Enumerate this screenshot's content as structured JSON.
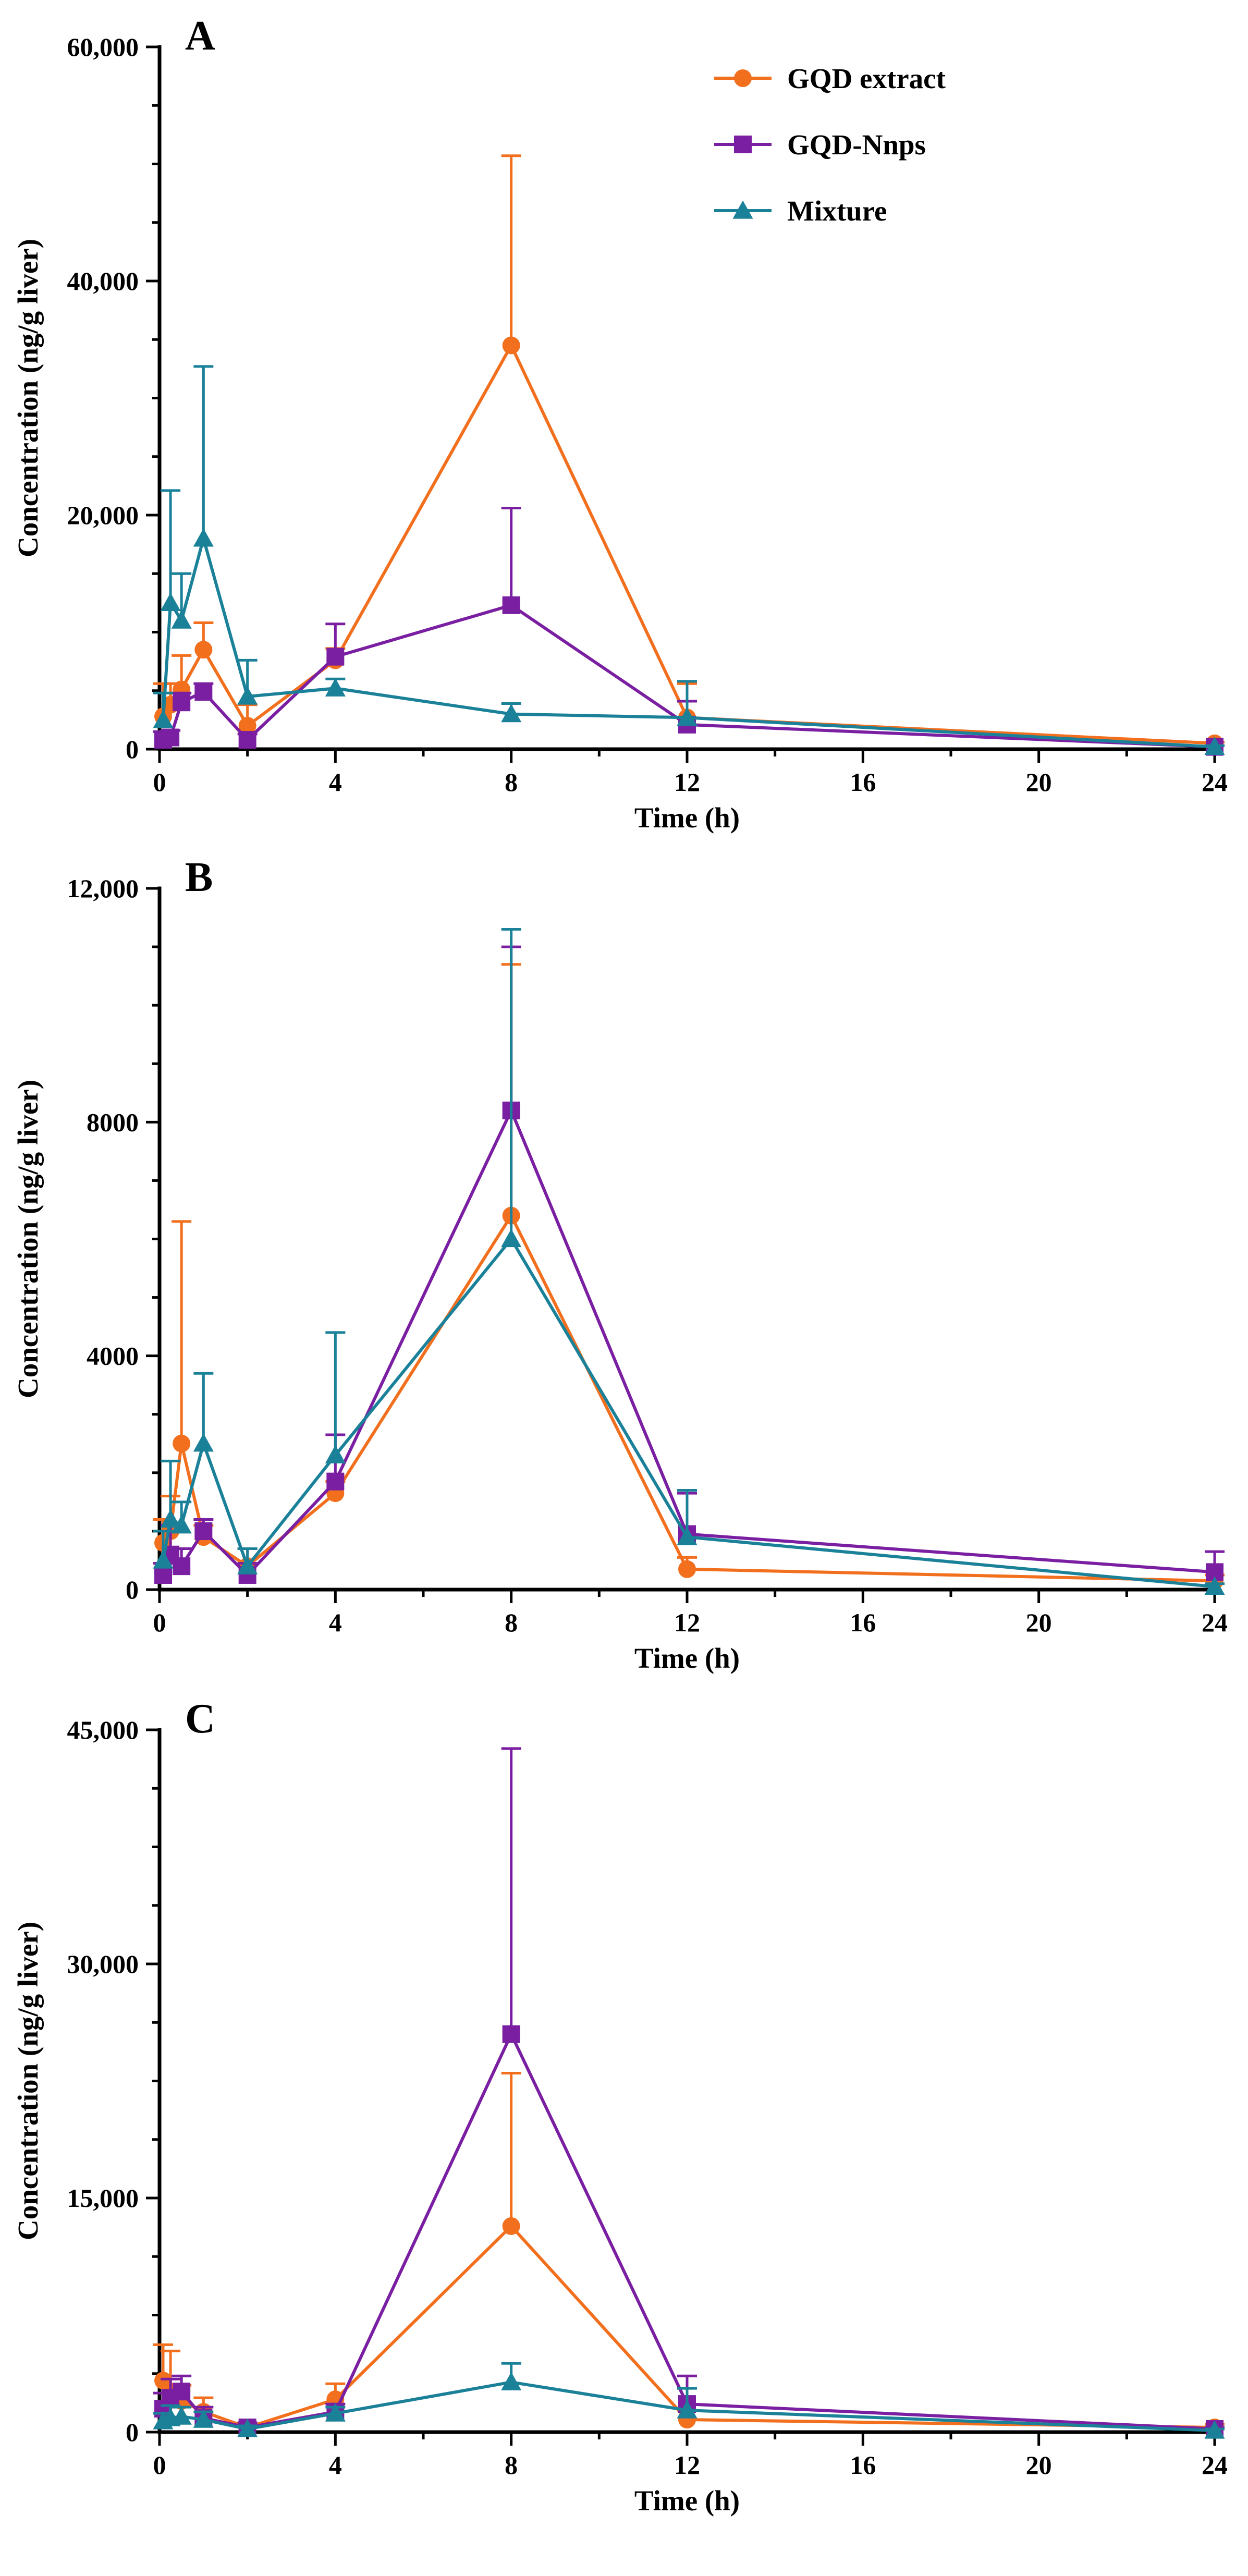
{
  "chart_data": [
    {
      "type": "line",
      "panel_label": "A",
      "xlabel": "Time (h)",
      "ylabel": "Concentration (ng/g liver)",
      "xlim": [
        0,
        24
      ],
      "ylim": [
        0,
        60000
      ],
      "x_ticks": [
        0,
        4,
        8,
        12,
        16,
        20,
        24
      ],
      "x_tick_labels": [
        "0",
        "4",
        "8",
        "12",
        "16",
        "20",
        "24"
      ],
      "y_ticks": [
        0,
        20000,
        40000,
        60000
      ],
      "y_tick_labels": [
        "0",
        "20,000",
        "40,000",
        "60,000"
      ],
      "legend": {
        "position": "top-right"
      },
      "series": [
        {
          "name": "GQD extract",
          "color": "#F26F1E",
          "marker": "circle",
          "x": [
            0.083,
            0.25,
            0.5,
            1,
            2,
            4,
            8,
            12,
            24
          ],
          "y": [
            2800,
            3800,
            5100,
            8500,
            2000,
            7600,
            34500,
            2700,
            500
          ],
          "error": [
            2800,
            1800,
            2900,
            2300,
            1800,
            1000,
            16200,
            2900,
            100
          ]
        },
        {
          "name": "GQD-Nnps",
          "color": "#7B1FA2",
          "marker": "square",
          "x": [
            0.083,
            0.25,
            0.5,
            1,
            2,
            4,
            8,
            12,
            24
          ],
          "y": [
            800,
            1000,
            4000,
            4900,
            800,
            7900,
            12300,
            2100,
            200
          ],
          "error": [
            700,
            600,
            800,
            700,
            500,
            2800,
            8300,
            2000,
            100
          ]
        },
        {
          "name": "Mixture",
          "color": "#1A8199",
          "marker": "triangle",
          "x": [
            0.083,
            0.25,
            0.5,
            1,
            2,
            4,
            8,
            12,
            24
          ],
          "y": [
            2500,
            12500,
            11000,
            18000,
            4500,
            5200,
            3000,
            2700,
            200
          ],
          "error": [
            2300,
            9600,
            4000,
            14700,
            3100,
            800,
            900,
            3100,
            100
          ]
        }
      ]
    },
    {
      "type": "line",
      "panel_label": "B",
      "xlabel": "Time (h)",
      "ylabel": "Concentration (ng/g liver)",
      "xlim": [
        0,
        24
      ],
      "ylim": [
        0,
        12000
      ],
      "x_ticks": [
        0,
        4,
        8,
        12,
        16,
        20,
        24
      ],
      "x_tick_labels": [
        "0",
        "4",
        "8",
        "12",
        "16",
        "20",
        "24"
      ],
      "y_ticks": [
        0,
        4000,
        8000,
        12000
      ],
      "y_tick_labels": [
        "0",
        "4000",
        "8000",
        "12,000"
      ],
      "series": [
        {
          "name": "GQD extract",
          "color": "#F26F1E",
          "marker": "circle",
          "x": [
            0.083,
            0.25,
            0.5,
            1,
            2,
            4,
            8,
            12,
            24
          ],
          "y": [
            800,
            1000,
            2500,
            900,
            400,
            1650,
            6400,
            350,
            150
          ],
          "error": [
            400,
            600,
            3800,
            200,
            300,
            200,
            4300,
            200,
            100
          ]
        },
        {
          "name": "GQD-Nnps",
          "color": "#7B1FA2",
          "marker": "square",
          "x": [
            0.083,
            0.25,
            0.5,
            1,
            2,
            4,
            8,
            12,
            24
          ],
          "y": [
            250,
            600,
            400,
            1000,
            250,
            1850,
            8200,
            950,
            300
          ],
          "error": [
            200,
            500,
            300,
            200,
            200,
            800,
            2800,
            700,
            350
          ]
        },
        {
          "name": "Mixture",
          "color": "#1A8199",
          "marker": "triangle",
          "x": [
            0.083,
            0.25,
            0.5,
            1,
            2,
            4,
            8,
            12,
            24
          ],
          "y": [
            500,
            1200,
            1100,
            2500,
            400,
            2300,
            6000,
            900,
            50
          ],
          "error": [
            500,
            1000,
            400,
            1200,
            300,
            2100,
            5300,
            800,
            50
          ]
        }
      ]
    },
    {
      "type": "line",
      "panel_label": "C",
      "xlabel": "Time (h)",
      "ylabel": "Concentration  (ng/g liver)",
      "xlim": [
        0,
        24
      ],
      "ylim": [
        0,
        45000
      ],
      "x_ticks": [
        0,
        4,
        8,
        12,
        16,
        20,
        24
      ],
      "x_tick_labels": [
        "0",
        "4",
        "8",
        "12",
        "16",
        "20",
        "24"
      ],
      "y_ticks": [
        0,
        15000,
        30000,
        45000
      ],
      "y_tick_labels": [
        "0",
        "15,000",
        "30,000",
        "45,000"
      ],
      "series": [
        {
          "name": "GQD extract",
          "color": "#F26F1E",
          "marker": "circle",
          "x": [
            0.083,
            0.25,
            0.5,
            1,
            2,
            4,
            8,
            12,
            24
          ],
          "y": [
            3300,
            2600,
            2000,
            1300,
            300,
            2100,
            13200,
            800,
            300
          ],
          "error": [
            2300,
            2600,
            1000,
            900,
            300,
            1000,
            9800,
            600,
            200
          ]
        },
        {
          "name": "GQD-Nnps",
          "color": "#7B1FA2",
          "marker": "square",
          "x": [
            0.083,
            0.25,
            0.5,
            1,
            2,
            4,
            8,
            12,
            24
          ],
          "y": [
            1500,
            2200,
            2600,
            900,
            300,
            1300,
            25500,
            1800,
            200
          ],
          "error": [
            1000,
            1200,
            1000,
            700,
            300,
            500,
            18300,
            1800,
            100
          ]
        },
        {
          "name": "Mixture",
          "color": "#1A8199",
          "marker": "triangle",
          "x": [
            0.083,
            0.25,
            0.5,
            1,
            2,
            4,
            8,
            12,
            24
          ],
          "y": [
            700,
            900,
            1000,
            800,
            200,
            1200,
            3200,
            1400,
            100
          ],
          "error": [
            500,
            800,
            600,
            500,
            200,
            400,
            1200,
            1400,
            100
          ]
        }
      ]
    }
  ]
}
